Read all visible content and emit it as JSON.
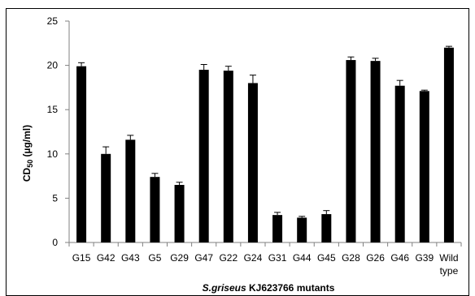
{
  "chart_data": {
    "type": "bar",
    "ylabel": "CD50 (µg/ml)",
    "xlabel_italic": "S.griseus",
    "xlabel_rest": " KJ623766 mutants",
    "categories": [
      "G15",
      "G42",
      "G43",
      "G5",
      "G29",
      "G47",
      "G22",
      "G24",
      "G31",
      "G44",
      "G45",
      "G28",
      "G26",
      "G46",
      "G39",
      "Wild type"
    ],
    "values": [
      19.9,
      10.0,
      11.6,
      7.4,
      6.5,
      19.5,
      19.4,
      18.0,
      3.1,
      2.8,
      3.2,
      20.6,
      20.5,
      17.7,
      17.1,
      22.0
    ],
    "errors": [
      0.4,
      0.8,
      0.5,
      0.4,
      0.3,
      0.6,
      0.5,
      0.9,
      0.3,
      0.15,
      0.4,
      0.35,
      0.3,
      0.6,
      0.1,
      0.15
    ],
    "ylim": [
      0,
      25
    ],
    "yticks": [
      0,
      5,
      10,
      15,
      20,
      25
    ],
    "grid": false,
    "legend": "none",
    "colors": {
      "bar": "#000000",
      "axis": "#808080",
      "text": "#000000"
    }
  }
}
